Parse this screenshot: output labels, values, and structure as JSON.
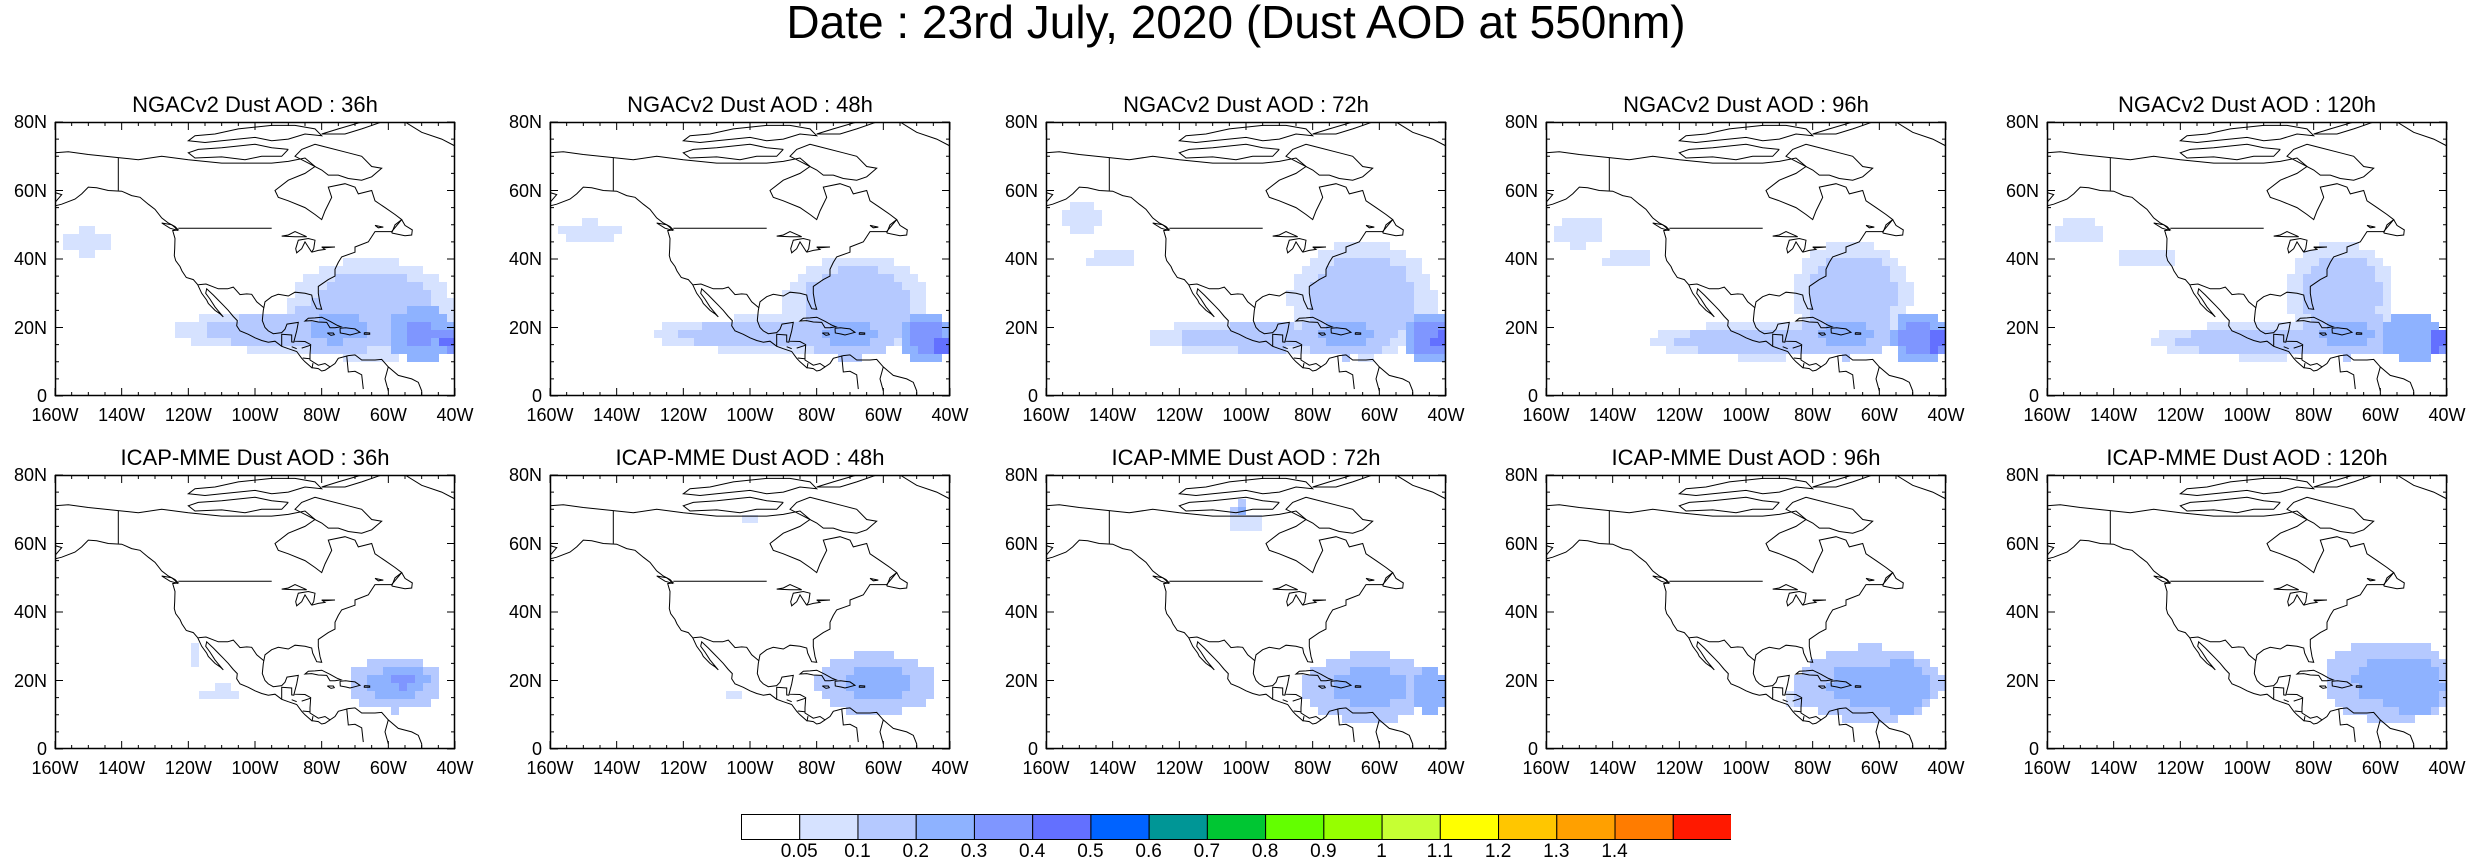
{
  "title": "Date : 23rd July, 2020 (Dust AOD at 550nm)",
  "panels": [
    {
      "title": "NGACv2 Dust AOD : 36h"
    },
    {
      "title": "NGACv2 Dust AOD : 48h"
    },
    {
      "title": "NGACv2 Dust AOD : 72h"
    },
    {
      "title": "NGACv2 Dust AOD : 96h"
    },
    {
      "title": "NGACv2 Dust AOD : 120h"
    },
    {
      "title": "ICAP-MME Dust AOD : 36h"
    },
    {
      "title": "ICAP-MME Dust AOD : 48h"
    },
    {
      "title": "ICAP-MME Dust AOD : 72h"
    },
    {
      "title": "ICAP-MME Dust AOD : 96h"
    },
    {
      "title": "ICAP-MME Dust AOD : 120h"
    }
  ],
  "axes": {
    "lon_labels": [
      "160W",
      "140W",
      "120W",
      "100W",
      "80W",
      "60W",
      "40W"
    ],
    "lat_labels": [
      "0",
      "20N",
      "40N",
      "60N",
      "80N"
    ]
  },
  "colorbar": {
    "labels": [
      "0.05",
      "0.1",
      "0.2",
      "0.3",
      "0.4",
      "0.5",
      "0.6",
      "0.7",
      "0.8",
      "0.9",
      "1",
      "1.1",
      "1.2",
      "1.3",
      "1.4"
    ],
    "colors": [
      "#ffffff",
      "#d6e2ff",
      "#b5c9ff",
      "#8eb2ff",
      "#7f96ff",
      "#6370ff",
      "#0063ff",
      "#009696",
      "#00c633",
      "#63ff00",
      "#96ff00",
      "#c6ff33",
      "#ffff00",
      "#ffc600",
      "#ffa000",
      "#ff7c00",
      "#ff1900"
    ]
  },
  "chart_data": {
    "type": "heatmap",
    "variable": "Dust AOD at 550nm",
    "x_range": [
      -160,
      -40
    ],
    "y_range": [
      0,
      80
    ],
    "panels": [
      {
        "blobs": [
          {
            "lon": -150,
            "lat": 45,
            "rx": 10,
            "ry": 5,
            "v": 0.06
          },
          {
            "lon": -65,
            "lat": 25,
            "rx": 25,
            "ry": 15,
            "v": 0.12
          },
          {
            "lon": -90,
            "lat": 19,
            "rx": 35,
            "ry": 6,
            "v": 0.12
          },
          {
            "lon": -75,
            "lat": 20,
            "rx": 16,
            "ry": 8,
            "v": 0.22
          },
          {
            "lon": -50,
            "lat": 18,
            "rx": 10,
            "ry": 8,
            "v": 0.32
          },
          {
            "lon": -42,
            "lat": 16,
            "rx": 3,
            "ry": 3,
            "v": 0.45
          }
        ]
      },
      {
        "blobs": [
          {
            "lon": -148,
            "lat": 48,
            "rx": 12,
            "ry": 4,
            "v": 0.06
          },
          {
            "lon": -68,
            "lat": 27,
            "rx": 22,
            "ry": 14,
            "v": 0.12
          },
          {
            "lon": -95,
            "lat": 18,
            "rx": 35,
            "ry": 5,
            "v": 0.12
          },
          {
            "lon": -70,
            "lat": 18,
            "rx": 15,
            "ry": 7,
            "v": 0.22
          },
          {
            "lon": -47,
            "lat": 17,
            "rx": 8,
            "ry": 7,
            "v": 0.35
          },
          {
            "lon": -42,
            "lat": 15,
            "rx": 3,
            "ry": 3,
            "v": 0.5
          }
        ]
      },
      {
        "blobs": [
          {
            "lon": -150,
            "lat": 52,
            "rx": 8,
            "ry": 6,
            "v": 0.06
          },
          {
            "lon": -140,
            "lat": 40,
            "rx": 10,
            "ry": 4,
            "v": 0.06
          },
          {
            "lon": -65,
            "lat": 28,
            "rx": 22,
            "ry": 17,
            "v": 0.12
          },
          {
            "lon": -95,
            "lat": 17,
            "rx": 35,
            "ry": 5,
            "v": 0.12
          },
          {
            "lon": -70,
            "lat": 18,
            "rx": 14,
            "ry": 7,
            "v": 0.22
          },
          {
            "lon": -45,
            "lat": 17,
            "rx": 8,
            "ry": 7,
            "v": 0.35
          },
          {
            "lon": -42,
            "lat": 16,
            "rx": 3,
            "ry": 3,
            "v": 0.5
          }
        ]
      },
      {
        "blobs": [
          {
            "lon": -150,
            "lat": 48,
            "rx": 10,
            "ry": 6,
            "v": 0.06
          },
          {
            "lon": -135,
            "lat": 40,
            "rx": 10,
            "ry": 4,
            "v": 0.06
          },
          {
            "lon": -68,
            "lat": 30,
            "rx": 18,
            "ry": 15,
            "v": 0.12
          },
          {
            "lon": -95,
            "lat": 16,
            "rx": 35,
            "ry": 5,
            "v": 0.12
          },
          {
            "lon": -70,
            "lat": 18,
            "rx": 14,
            "ry": 7,
            "v": 0.22
          },
          {
            "lon": -48,
            "lat": 17,
            "rx": 8,
            "ry": 8,
            "v": 0.35
          },
          {
            "lon": -43,
            "lat": 16,
            "rx": 3,
            "ry": 4,
            "v": 0.5
          }
        ]
      },
      {
        "blobs": [
          {
            "lon": -150,
            "lat": 48,
            "rx": 10,
            "ry": 5,
            "v": 0.06
          },
          {
            "lon": -130,
            "lat": 40,
            "rx": 12,
            "ry": 4,
            "v": 0.06
          },
          {
            "lon": -72,
            "lat": 30,
            "rx": 16,
            "ry": 15,
            "v": 0.12
          },
          {
            "lon": -95,
            "lat": 16,
            "rx": 35,
            "ry": 5,
            "v": 0.12
          },
          {
            "lon": -70,
            "lat": 18,
            "rx": 14,
            "ry": 7,
            "v": 0.22
          },
          {
            "lon": -50,
            "lat": 17,
            "rx": 10,
            "ry": 7,
            "v": 0.3
          },
          {
            "lon": -43,
            "lat": 16,
            "rx": 3,
            "ry": 4,
            "v": 0.5
          }
        ]
      },
      {
        "blobs": [
          {
            "lon": -58,
            "lat": 19,
            "rx": 14,
            "ry": 8,
            "v": 0.22
          },
          {
            "lon": -55,
            "lat": 20,
            "rx": 7,
            "ry": 5,
            "v": 0.32
          },
          {
            "lon": -110,
            "lat": 16,
            "rx": 8,
            "ry": 3,
            "v": 0.06
          },
          {
            "lon": -118,
            "lat": 28,
            "rx": 2,
            "ry": 4,
            "v": 0.06
          }
        ]
      },
      {
        "blobs": [
          {
            "lon": -62,
            "lat": 19,
            "rx": 18,
            "ry": 9,
            "v": 0.22
          },
          {
            "lon": -100,
            "lat": 67,
            "rx": 4,
            "ry": 2,
            "v": 0.06
          },
          {
            "lon": -78,
            "lat": 20,
            "rx": 5,
            "ry": 3,
            "v": 0.06
          },
          {
            "lon": -105,
            "lat": 15,
            "rx": 4,
            "ry": 2,
            "v": 0.06
          }
        ]
      },
      {
        "blobs": [
          {
            "lon": -63,
            "lat": 18,
            "rx": 20,
            "ry": 10,
            "v": 0.22
          },
          {
            "lon": -45,
            "lat": 17,
            "rx": 5,
            "ry": 7,
            "v": 0.3
          },
          {
            "lon": -102,
            "lat": 70,
            "rx": 3,
            "ry": 2,
            "v": 0.22
          },
          {
            "lon": -100,
            "lat": 66,
            "rx": 6,
            "ry": 3,
            "v": 0.06
          }
        ]
      },
      {
        "blobs": [
          {
            "lon": -63,
            "lat": 19,
            "rx": 22,
            "ry": 11,
            "v": 0.22
          },
          {
            "lon": -53,
            "lat": 18,
            "rx": 8,
            "ry": 8,
            "v": 0.3
          },
          {
            "lon": -82,
            "lat": 15,
            "rx": 6,
            "ry": 3,
            "v": 0.12
          }
        ]
      },
      {
        "blobs": [
          {
            "lon": -57,
            "lat": 20,
            "rx": 20,
            "ry": 12,
            "v": 0.22
          },
          {
            "lon": -50,
            "lat": 18,
            "rx": 9,
            "ry": 8,
            "v": 0.3
          }
        ]
      }
    ]
  }
}
